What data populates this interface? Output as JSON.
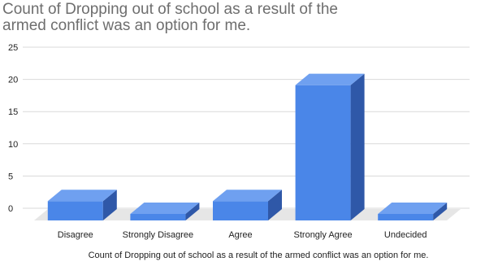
{
  "chart_data": {
    "type": "bar",
    "title": "Count of Dropping out of school as a result of the armed conflict was an option for me.",
    "xlabel": "Count of Dropping out of school as a result of the armed conflict was an option for me.",
    "ylabel": "",
    "categories": [
      "Disagree",
      "Strongly Disagree",
      "Agree",
      "Strongly Agree",
      "Undecided"
    ],
    "values": [
      3,
      0,
      3,
      21,
      0
    ],
    "ylim": [
      0,
      25
    ],
    "yticks": [
      0,
      5,
      10,
      15,
      20,
      25
    ],
    "grid": true,
    "style": "3d",
    "bar_color": "#4a86e8",
    "bar_side_color": "#2f58a8",
    "bar_top_color": "#6fa0f0",
    "floor_color": "#e6e6e6"
  }
}
